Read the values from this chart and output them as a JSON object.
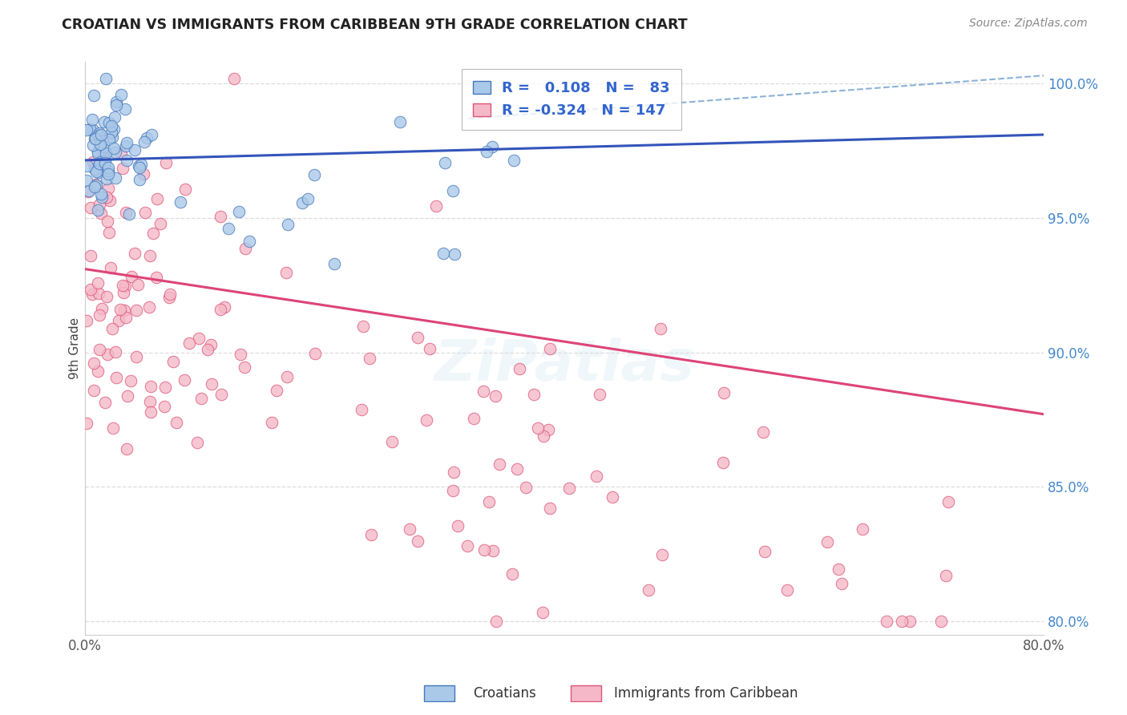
{
  "title": "CROATIAN VS IMMIGRANTS FROM CARIBBEAN 9TH GRADE CORRELATION CHART",
  "source": "Source: ZipAtlas.com",
  "ylabel": "9th Grade",
  "xlim": [
    0.0,
    0.8
  ],
  "ylim": [
    0.795,
    1.008
  ],
  "yticks": [
    0.8,
    0.85,
    0.9,
    0.95,
    1.0
  ],
  "ytick_labels": [
    "80.0%",
    "85.0%",
    "90.0%",
    "95.0%",
    "100.0%"
  ],
  "xticks": [
    0.0,
    0.1,
    0.2,
    0.3,
    0.4,
    0.5,
    0.6,
    0.7,
    0.8
  ],
  "xtick_labels": [
    "0.0%",
    "",
    "",
    "",
    "",
    "",
    "",
    "",
    "80.0%"
  ],
  "blue_R": 0.108,
  "blue_N": 83,
  "pink_R": -0.324,
  "pink_N": 147,
  "blue_color": "#aac8e8",
  "pink_color": "#f5b8c8",
  "blue_edge_color": "#4477bb",
  "pink_edge_color": "#dd5577",
  "blue_line_color": "#3355bb",
  "pink_line_color": "#dd4477",
  "blue_dashed_color": "#88aaddaa",
  "background_color": "#ffffff",
  "blue_trend": [
    0.0,
    0.9715,
    0.8,
    0.981
  ],
  "pink_trend": [
    0.0,
    0.931,
    0.8,
    0.877
  ],
  "dashed_line": [
    0.32,
    0.987,
    0.8,
    1.003
  ]
}
